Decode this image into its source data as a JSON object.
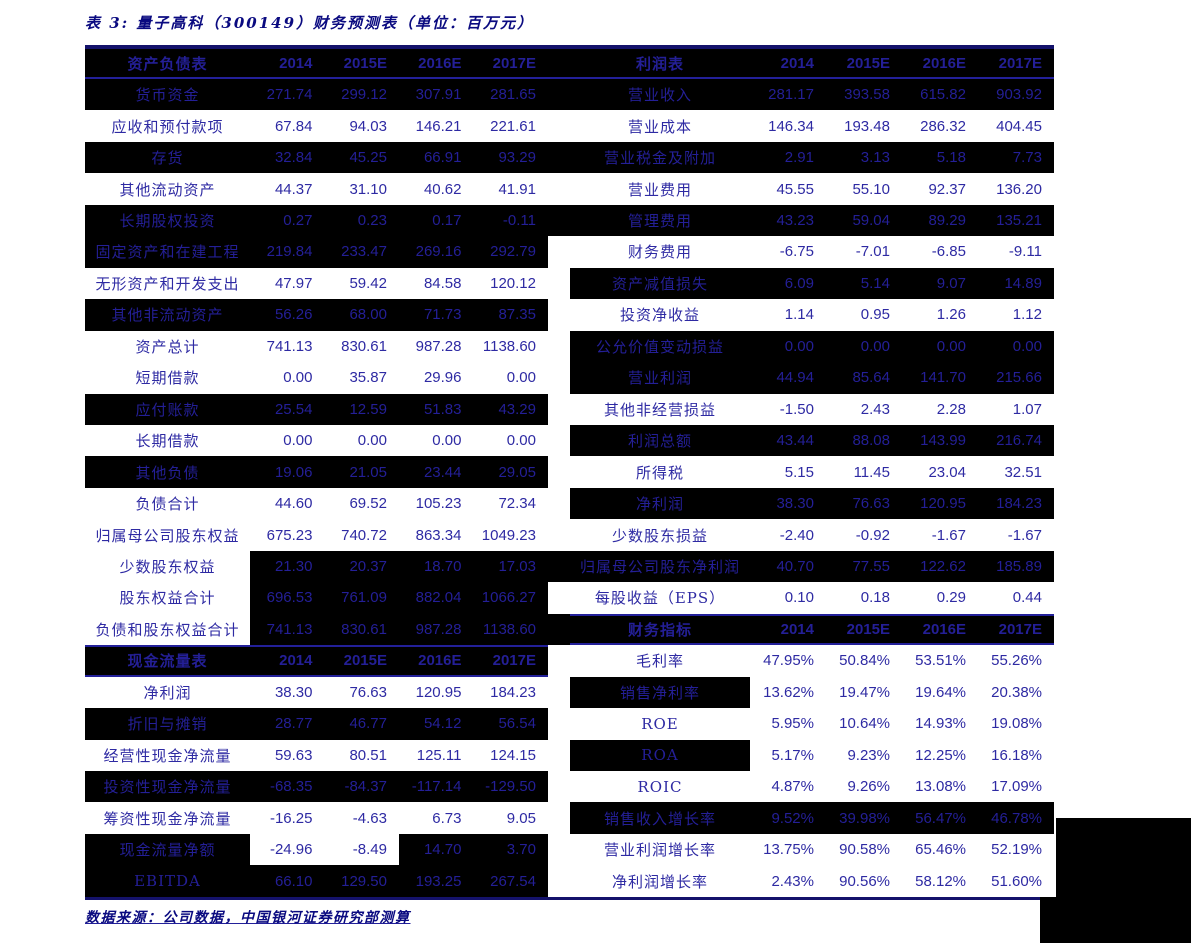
{
  "title": "表 3:  量子高科（300149）财务预测表（单位：百万元）",
  "source_note": "数据来源：公司数据，中国银河证券研究部测算",
  "colors": {
    "text_blue_light_bg": "#2e2aa3",
    "text_blue_dark_bg": "#241f97",
    "dark_row_bg": "#000000",
    "rule_thick": "#14126b",
    "rule_thin": "#23209a",
    "title_blue": "#0a0a80"
  },
  "sections": {
    "balance_sheet": {
      "header": "资产负债表",
      "years": [
        "2014",
        "2015E",
        "2016E",
        "2017E"
      ],
      "rows": [
        {
          "label": "货币资金",
          "values": [
            "271.74",
            "299.12",
            "307.91",
            "281.65"
          ],
          "dark": true
        },
        {
          "label": "应收和预付款项",
          "values": [
            "67.84",
            "94.03",
            "146.21",
            "221.61"
          ],
          "dark": false
        },
        {
          "label": "存货",
          "values": [
            "32.84",
            "45.25",
            "66.91",
            "93.29"
          ],
          "dark": true
        },
        {
          "label": "其他流动资产",
          "values": [
            "44.37",
            "31.10",
            "40.62",
            "41.91"
          ],
          "dark": false
        },
        {
          "label": "长期股权投资",
          "values": [
            "0.27",
            "0.23",
            "0.17",
            "-0.11"
          ],
          "dark": true
        },
        {
          "label": "固定资产和在建工程",
          "values": [
            "219.84",
            "233.47",
            "269.16",
            "292.79"
          ],
          "dark": true
        },
        {
          "label": "无形资产和开发支出",
          "values": [
            "47.97",
            "59.42",
            "84.58",
            "120.12"
          ],
          "dark": false
        },
        {
          "label": "其他非流动资产",
          "values": [
            "56.26",
            "68.00",
            "71.73",
            "87.35"
          ],
          "dark": true
        },
        {
          "label": "资产总计",
          "values": [
            "741.13",
            "830.61",
            "987.28",
            "1138.60"
          ],
          "dark": false
        },
        {
          "label": "短期借款",
          "values": [
            "0.00",
            "35.87",
            "29.96",
            "0.00"
          ],
          "dark": false
        },
        {
          "label": "应付账款",
          "values": [
            "25.54",
            "12.59",
            "51.83",
            "43.29"
          ],
          "dark": true
        },
        {
          "label": "长期借款",
          "values": [
            "0.00",
            "0.00",
            "0.00",
            "0.00"
          ],
          "dark": false
        },
        {
          "label": "其他负债",
          "values": [
            "19.06",
            "21.05",
            "23.44",
            "29.05"
          ],
          "dark": true
        },
        {
          "label": "负债合计",
          "values": [
            "44.60",
            "69.52",
            "105.23",
            "72.34"
          ],
          "dark": false
        },
        {
          "label": "归属母公司股东权益",
          "values": [
            "675.23",
            "740.72",
            "863.34",
            "1049.23"
          ],
          "dark": false
        },
        {
          "label": "少数股东权益",
          "values": [
            "21.30",
            "20.37",
            "18.70",
            "17.03"
          ],
          "dark": [
            0,
            1,
            1,
            1,
            1
          ]
        },
        {
          "label": "股东权益合计",
          "values": [
            "696.53",
            "761.09",
            "882.04",
            "1066.27"
          ],
          "dark": [
            0,
            1,
            1,
            1,
            1
          ]
        },
        {
          "label": "负债和股东权益合计",
          "values": [
            "741.13",
            "830.61",
            "987.28",
            "1138.60"
          ],
          "dark": [
            0,
            1,
            1,
            1,
            1
          ]
        }
      ]
    },
    "cash_flow": {
      "header": "现金流量表",
      "years": [
        "2014",
        "2015E",
        "2016E",
        "2017E"
      ],
      "rows": [
        {
          "label": "净利润",
          "values": [
            "38.30",
            "76.63",
            "120.95",
            "184.23"
          ],
          "dark": false
        },
        {
          "label": "折旧与摊销",
          "values": [
            "28.77",
            "46.77",
            "54.12",
            "56.54"
          ],
          "dark": true
        },
        {
          "label": "经营性现金净流量",
          "values": [
            "59.63",
            "80.51",
            "125.11",
            "124.15"
          ],
          "dark": false
        },
        {
          "label": "投资性现金净流量",
          "values": [
            "-68.35",
            "-84.37",
            "-117.14",
            "-129.50"
          ],
          "dark": true
        },
        {
          "label": "筹资性现金净流量",
          "values": [
            "-16.25",
            "-4.63",
            "6.73",
            "9.05"
          ],
          "dark": false
        },
        {
          "label": "现金流量净额",
          "values": [
            "-24.96",
            "-8.49",
            "14.70",
            "3.70"
          ],
          "dark": [
            1,
            0,
            0,
            1,
            1
          ]
        },
        {
          "label": "EBITDA",
          "values": [
            "66.10",
            "129.50",
            "193.25",
            "267.54"
          ],
          "dark": true
        }
      ]
    },
    "income_statement": {
      "header": "利润表",
      "years": [
        "2014",
        "2015E",
        "2016E",
        "2017E"
      ],
      "rows": [
        {
          "label": "营业收入",
          "values": [
            "281.17",
            "393.58",
            "615.82",
            "903.92"
          ],
          "dark": true
        },
        {
          "label": "营业成本",
          "values": [
            "146.34",
            "193.48",
            "286.32",
            "404.45"
          ],
          "dark": false
        },
        {
          "label": "营业税金及附加",
          "values": [
            "2.91",
            "3.13",
            "5.18",
            "7.73"
          ],
          "dark": true
        },
        {
          "label": "营业费用",
          "values": [
            "45.55",
            "55.10",
            "92.37",
            "136.20"
          ],
          "dark": false
        },
        {
          "label": "管理费用",
          "values": [
            "43.23",
            "59.04",
            "89.29",
            "135.21"
          ],
          "dark": true
        },
        {
          "label": "财务费用",
          "values": [
            "-6.75",
            "-7.01",
            "-6.85",
            "-9.11"
          ],
          "dark": false
        },
        {
          "label": "资产减值损失",
          "values": [
            "6.09",
            "5.14",
            "9.07",
            "14.89"
          ],
          "dark": true
        },
        {
          "label": "投资净收益",
          "values": [
            "1.14",
            "0.95",
            "1.26",
            "1.12"
          ],
          "dark": false
        },
        {
          "label": "公允价值变动损益",
          "values": [
            "0.00",
            "0.00",
            "0.00",
            "0.00"
          ],
          "dark": true
        },
        {
          "label": "营业利润",
          "values": [
            "44.94",
            "85.64",
            "141.70",
            "215.66"
          ],
          "dark": true
        },
        {
          "label": "其他非经营损益",
          "values": [
            "-1.50",
            "2.43",
            "2.28",
            "1.07"
          ],
          "dark": false
        },
        {
          "label": "利润总额",
          "values": [
            "43.44",
            "88.08",
            "143.99",
            "216.74"
          ],
          "dark": true
        },
        {
          "label": "所得税",
          "values": [
            "5.15",
            "11.45",
            "23.04",
            "32.51"
          ],
          "dark": false
        },
        {
          "label": "净利润",
          "values": [
            "38.30",
            "76.63",
            "120.95",
            "184.23"
          ],
          "dark": true
        },
        {
          "label": "少数股东损益",
          "values": [
            "-2.40",
            "-0.92",
            "-1.67",
            "-1.67"
          ],
          "dark": false
        },
        {
          "label": "归属母公司股东净利润",
          "values": [
            "40.70",
            "77.55",
            "122.62",
            "185.89"
          ],
          "dark": true
        },
        {
          "label": "每股收益（EPS）",
          "values": [
            "0.10",
            "0.18",
            "0.29",
            "0.44"
          ],
          "dark": false
        }
      ]
    },
    "financial_indicators": {
      "header": "财务指标",
      "years": [
        "2014",
        "2015E",
        "2016E",
        "2017E"
      ],
      "rows": [
        {
          "label": "毛利率",
          "values": [
            "47.95%",
            "50.84%",
            "53.51%",
            "55.26%"
          ],
          "dark": false
        },
        {
          "label": "销售净利率",
          "values": [
            "13.62%",
            "19.47%",
            "19.64%",
            "20.38%"
          ],
          "dark": [
            1,
            0,
            0,
            0,
            0
          ]
        },
        {
          "label": "ROE",
          "values": [
            "5.95%",
            "10.64%",
            "14.93%",
            "19.08%"
          ],
          "dark": false
        },
        {
          "label": "ROA",
          "values": [
            "5.17%",
            "9.23%",
            "12.25%",
            "16.18%"
          ],
          "dark": [
            1,
            0,
            0,
            0,
            0
          ]
        },
        {
          "label": "ROIC",
          "values": [
            "4.87%",
            "9.26%",
            "13.08%",
            "17.09%"
          ],
          "dark": false
        },
        {
          "label": "销售收入增长率",
          "values": [
            "9.52%",
            "39.98%",
            "56.47%",
            "46.78%"
          ],
          "dark": true
        },
        {
          "label": "营业利润增长率",
          "values": [
            "13.75%",
            "90.58%",
            "65.46%",
            "52.19%"
          ],
          "dark": false
        },
        {
          "label": "净利润增长率",
          "values": [
            "2.43%",
            "90.56%",
            "58.12%",
            "51.60%"
          ],
          "dark": false
        }
      ]
    }
  }
}
